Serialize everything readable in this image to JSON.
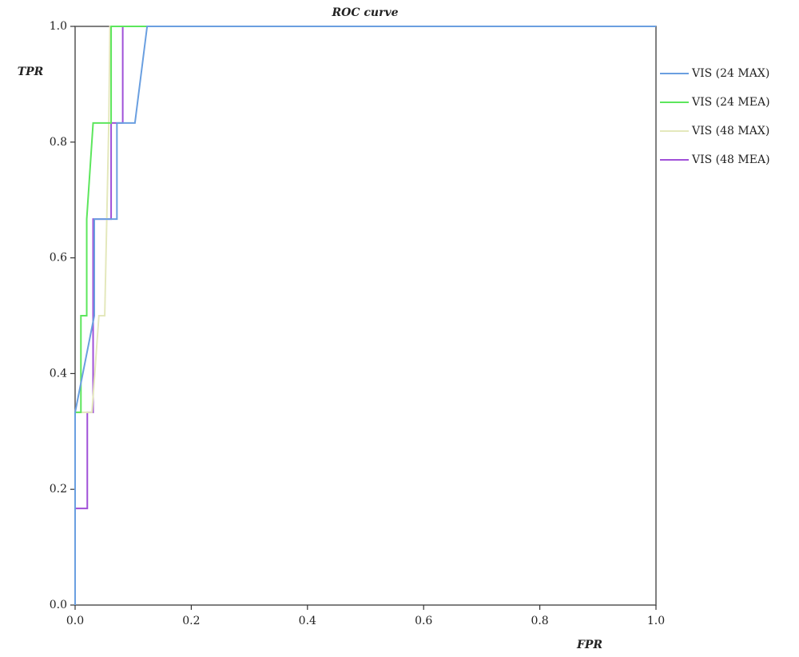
{
  "chart_data": {
    "type": "line",
    "title": "ROC curve",
    "x_label": "FPR",
    "y_label": "TPR",
    "xlim": [
      0,
      1
    ],
    "ylim": [
      0,
      1
    ],
    "xticks": [
      {
        "value": 0,
        "label": "0.0"
      },
      0.2,
      0.4,
      0.6,
      0.8,
      {
        "value": 1,
        "label": "1.0"
      }
    ],
    "yticks": [
      {
        "value": 0,
        "label": "0.0"
      },
      0.2,
      0.4,
      0.6,
      0.8,
      {
        "value": 1,
        "label": "1.0"
      }
    ],
    "legend": "right",
    "series": [
      {
        "name": "VIS (24 MAX)",
        "color": "#6a9fe0",
        "x": [
          0,
          0,
          0.033,
          0.033,
          0.072,
          0.072,
          0.103,
          0.124,
          1
        ],
        "values": [
          0,
          0.333,
          0.5,
          0.667,
          0.667,
          0.833,
          0.833,
          1,
          1
        ]
      },
      {
        "name": "VIS (24 MEA)",
        "color": "#5ce65c",
        "x": [
          0,
          0,
          0.01,
          0.01,
          0.02,
          0.02,
          0.031,
          0.062,
          0.062,
          1
        ],
        "values": [
          0,
          0.333,
          0.333,
          0.5,
          0.5,
          0.667,
          0.833,
          0.833,
          1,
          1
        ]
      },
      {
        "name": "VIS (48 MAX)",
        "color": "#e4e8bc",
        "x": [
          0,
          0,
          0.029,
          0.041,
          0.051,
          0.058,
          0.06,
          1
        ],
        "values": [
          0,
          0.333,
          0.333,
          0.5,
          0.5,
          0.833,
          1,
          1
        ]
      },
      {
        "name": "VIS (48 MEA)",
        "color": "#a050d8",
        "x": [
          0,
          0,
          0.021,
          0.021,
          0.031,
          0.031,
          0.062,
          0.062,
          0.082,
          0.082,
          1
        ],
        "values": [
          0,
          0.167,
          0.167,
          0.333,
          0.333,
          0.667,
          0.667,
          0.833,
          0.833,
          1,
          1
        ]
      }
    ]
  }
}
